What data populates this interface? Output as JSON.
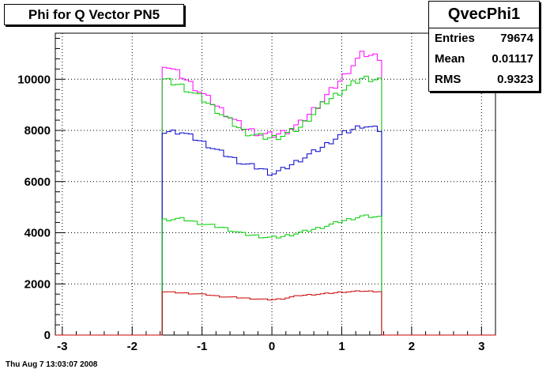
{
  "title": "Phi for Q Vector PN5",
  "stats": {
    "name": "QvecPhi1",
    "rows": [
      {
        "label": "Entries",
        "value": "79674"
      },
      {
        "label": "Mean",
        "value": "0.01117"
      },
      {
        "label": "RMS",
        "value": "0.9323"
      }
    ]
  },
  "timestamp": "Thu Aug  7 13:03:07 2008",
  "chart_data": {
    "type": "line",
    "title": "Phi for Q Vector PN5",
    "xlabel": "",
    "ylabel": "",
    "xlim": [
      -3.1,
      3.2
    ],
    "ylim": [
      0,
      11800
    ],
    "grid": true,
    "x_ticks": [
      -3,
      -2,
      -1,
      0,
      1,
      2,
      3
    ],
    "x_tick_labels": [
      "-3",
      "-2",
      "-1",
      "0",
      "1",
      "2",
      "3"
    ],
    "y_ticks": [
      0,
      2000,
      4000,
      6000,
      8000,
      10000
    ],
    "y_tick_labels": [
      "0",
      "2000",
      "4000",
      "6000",
      "8000",
      "10000"
    ],
    "x_range": [
      -1.5708,
      1.5708
    ],
    "series": [
      {
        "color": "#ff00ff",
        "edge_values": [
          10650,
          10850
        ],
        "points": [
          [
            -1.5708,
            10650
          ],
          [
            -1.3,
            10150
          ],
          [
            -1.0,
            9450
          ],
          [
            -0.7,
            8750
          ],
          [
            -0.4,
            8100
          ],
          [
            -0.15,
            7850
          ],
          [
            0,
            7800
          ],
          [
            0.15,
            7900
          ],
          [
            0.4,
            8250
          ],
          [
            0.7,
            9100
          ],
          [
            1.0,
            10000
          ],
          [
            1.2,
            10700
          ],
          [
            1.3,
            11000
          ],
          [
            1.5708,
            10850
          ]
        ]
      },
      {
        "color": "#00cc00",
        "edge_values": [
          10000,
          10000
        ],
        "points": [
          [
            -1.5708,
            10000
          ],
          [
            -1.3,
            9750
          ],
          [
            -1.0,
            9250
          ],
          [
            -0.7,
            8600
          ],
          [
            -0.4,
            7950
          ],
          [
            -0.15,
            7750
          ],
          [
            0,
            7700
          ],
          [
            0.15,
            7800
          ],
          [
            0.4,
            8100
          ],
          [
            0.7,
            8950
          ],
          [
            1.0,
            9550
          ],
          [
            1.3,
            10050
          ],
          [
            1.5708,
            10000
          ]
        ]
      },
      {
        "color": "#0000cc",
        "edge_values": [
          7950,
          8000
        ],
        "points": [
          [
            -1.5708,
            7950
          ],
          [
            -1.3,
            7950
          ],
          [
            -1.0,
            7550
          ],
          [
            -0.7,
            7100
          ],
          [
            -0.4,
            6700
          ],
          [
            -0.15,
            6500
          ],
          [
            0,
            6300
          ],
          [
            0.15,
            6450
          ],
          [
            0.4,
            6850
          ],
          [
            0.7,
            7300
          ],
          [
            1.0,
            7850
          ],
          [
            1.3,
            8200
          ],
          [
            1.5708,
            8000
          ]
        ]
      },
      {
        "color": "#00cc00",
        "edge_values": [
          4500,
          4600
        ],
        "points": [
          [
            -1.5708,
            4500
          ],
          [
            -1.3,
            4550
          ],
          [
            -1.0,
            4350
          ],
          [
            -0.7,
            4200
          ],
          [
            -0.4,
            3950
          ],
          [
            -0.15,
            3850
          ],
          [
            0,
            3800
          ],
          [
            0.15,
            3850
          ],
          [
            0.4,
            4000
          ],
          [
            0.7,
            4200
          ],
          [
            1.0,
            4450
          ],
          [
            1.3,
            4650
          ],
          [
            1.5708,
            4600
          ]
        ]
      },
      {
        "color": "#cc0000",
        "edge_values": [
          1700,
          1700
        ],
        "points": [
          [
            -1.5708,
            1700
          ],
          [
            -1.3,
            1650
          ],
          [
            -1.0,
            1600
          ],
          [
            -0.7,
            1500
          ],
          [
            -0.4,
            1450
          ],
          [
            -0.15,
            1400
          ],
          [
            0,
            1380
          ],
          [
            0.15,
            1420
          ],
          [
            0.4,
            1550
          ],
          [
            0.7,
            1600
          ],
          [
            1.0,
            1680
          ],
          [
            1.3,
            1720
          ],
          [
            1.5708,
            1700
          ]
        ]
      }
    ]
  }
}
